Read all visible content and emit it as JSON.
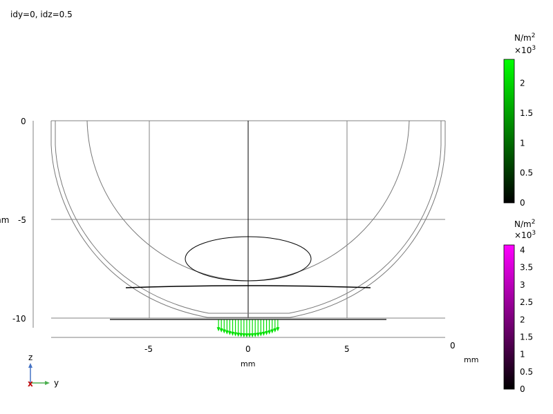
{
  "title": "idy=0, idz=0.5",
  "chart_data": {
    "type": "line",
    "title": "idy=0, idz=0.5",
    "xlabel": "mm",
    "ylabel": "mm",
    "x_ticks": [
      -5,
      0,
      5
    ],
    "y_ticks": [
      0,
      -5,
      -10
    ],
    "extra_tick_label": "0",
    "xlim": [
      -10,
      10
    ],
    "ylim": [
      -11,
      0
    ],
    "grid": false,
    "geometry_lines": [
      {
        "name": "outer-shell",
        "x": [
          -10,
          -10,
          -9,
          -7,
          -4,
          0,
          4,
          7,
          9,
          10,
          10
        ],
        "y": [
          0,
          -1,
          -5,
          -7.7,
          -9.4,
          -10.0,
          -9.4,
          -7.7,
          -5,
          -1,
          0
        ]
      },
      {
        "name": "inner-shell",
        "x": [
          -8.2,
          -7.5,
          -5,
          -2,
          0,
          2,
          5,
          7.5,
          8.2
        ],
        "y": [
          0,
          -3,
          -6.4,
          -7.9,
          -8.1,
          -7.9,
          -6.4,
          -3,
          0
        ]
      },
      {
        "name": "inner-ellipse",
        "cx": 0,
        "cy": -7,
        "rx": 3.2,
        "ry": 1.1
      },
      {
        "name": "base-line",
        "x": [
          -7,
          7
        ],
        "y": [
          -10.05,
          -10.05
        ]
      },
      {
        "name": "support-curve",
        "x": [
          -6.1,
          0,
          6.1
        ],
        "y": [
          -8.6,
          -8.45,
          -8.6
        ]
      }
    ],
    "arrow_field": {
      "name": "stress-arrows",
      "x_range": [
        -1.5,
        1.5
      ],
      "y": -10.05,
      "length": 0.8,
      "color": "#00e000"
    },
    "colorbars": [
      {
        "unit": "N/m",
        "unit_sup": "2",
        "multiplier": "×10",
        "multiplier_sup": "3",
        "ticks": [
          "2",
          "1.5",
          "1",
          "0.5",
          "0"
        ],
        "tick_values": [
          2,
          1.5,
          1,
          0.5,
          0
        ],
        "range": [
          0,
          2.4
        ],
        "colors": [
          "#000000",
          "#00ff00"
        ]
      },
      {
        "unit": "N/m",
        "unit_sup": "2",
        "multiplier": "×10",
        "multiplier_sup": "3",
        "ticks": [
          "4",
          "3.5",
          "3",
          "2.5",
          "2",
          "1.5",
          "1",
          "0.5",
          "0"
        ],
        "tick_values": [
          4,
          3.5,
          3,
          2.5,
          2,
          1.5,
          1,
          0.5,
          0
        ],
        "range": [
          0,
          4.15
        ],
        "colors": [
          "#000000",
          "#ff00ff"
        ]
      }
    ],
    "axis_triad": {
      "z_label": "z",
      "y_label": "y",
      "x_label": "x"
    }
  }
}
